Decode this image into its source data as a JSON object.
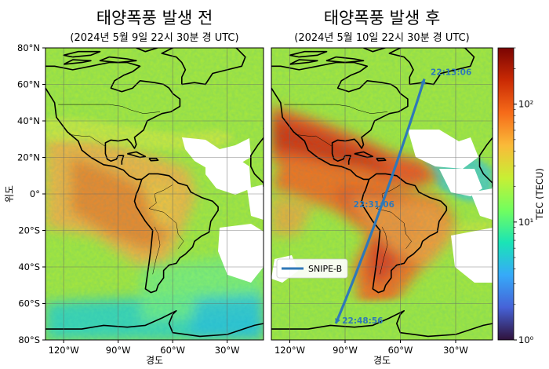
{
  "panels": [
    {
      "title": "태양폭풍 발생 전",
      "subtitle": "(2024년 5월 9일 22시 30분 경 UTC)"
    },
    {
      "title": "태양폭풍 발생 후",
      "subtitle": "(2024년 5월 10일 22시 30분 경 UTC)"
    }
  ],
  "axes": {
    "ylabel": "위도",
    "xlabel": "경도",
    "lat_ticks": [
      "80°N",
      "60°N",
      "40°N",
      "20°N",
      "0°",
      "20°S",
      "40°S",
      "60°S",
      "80°S"
    ],
    "lon_ticks": [
      "120°W",
      "90°W",
      "60°W",
      "30°W"
    ],
    "lat_range": [
      -80,
      80
    ],
    "lon_range": [
      -130,
      -10
    ]
  },
  "colorbar": {
    "label": "TEC (TECU)",
    "scale": "log",
    "range": [
      1,
      300
    ],
    "ticks": [
      "10⁰",
      "10¹",
      "10²"
    ],
    "colors": [
      "#30123b",
      "#4662d7",
      "#36aaf9",
      "#1ae4b6",
      "#72fe5e",
      "#c8ef34",
      "#faba39",
      "#f66b19",
      "#ca2a04",
      "#7a0403"
    ]
  },
  "satellite": {
    "name": "SNIPE-B",
    "color": "#2f78b8",
    "track": [
      {
        "time": "22:13:06",
        "lat": 63,
        "lon": -47
      },
      {
        "time": "22:31:06",
        "lat": -6,
        "lon": -71
      },
      {
        "time": "22:48:56",
        "lat": -71,
        "lon": -95
      }
    ]
  }
}
